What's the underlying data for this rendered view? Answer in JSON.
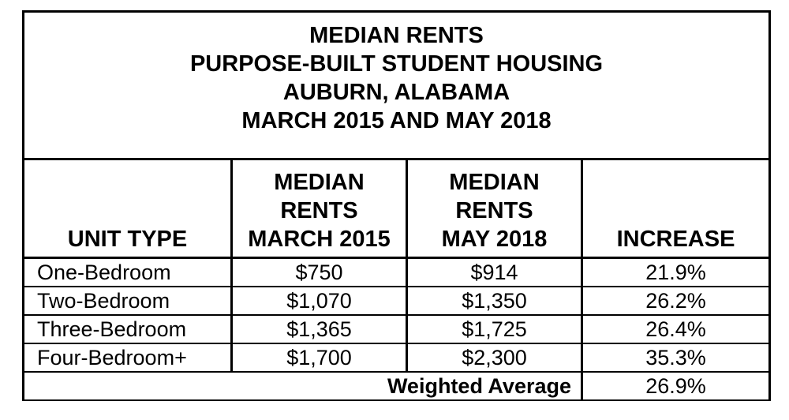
{
  "title": {
    "lines": [
      "MEDIAN RENTS",
      "PURPOSE-BUILT STUDENT HOUSING",
      "AUBURN, ALABAMA",
      "MARCH 2015 AND MAY 2018"
    ]
  },
  "columns": [
    {
      "lines": [
        "UNIT TYPE"
      ]
    },
    {
      "lines": [
        "MEDIAN",
        "RENTS",
        "MARCH 2015"
      ]
    },
    {
      "lines": [
        "MEDIAN",
        "RENTS",
        "MAY 2018"
      ]
    },
    {
      "lines": [
        "INCREASE"
      ]
    }
  ],
  "rows": [
    {
      "unit_type": "One-Bedroom",
      "march_2015": "$750",
      "may_2018": "$914",
      "increase": "21.9%"
    },
    {
      "unit_type": "Two-Bedroom",
      "march_2015": "$1,070",
      "may_2018": "$1,350",
      "increase": "26.2%"
    },
    {
      "unit_type": "Three-Bedroom",
      "march_2015": "$1,365",
      "may_2018": "$1,725",
      "increase": "26.4%"
    },
    {
      "unit_type": "Four-Bedroom+",
      "march_2015": "$1,700",
      "may_2018": "$2,300",
      "increase": "35.3%"
    }
  ],
  "weighted_average": {
    "label": "Weighted Average",
    "value": "26.9%"
  }
}
